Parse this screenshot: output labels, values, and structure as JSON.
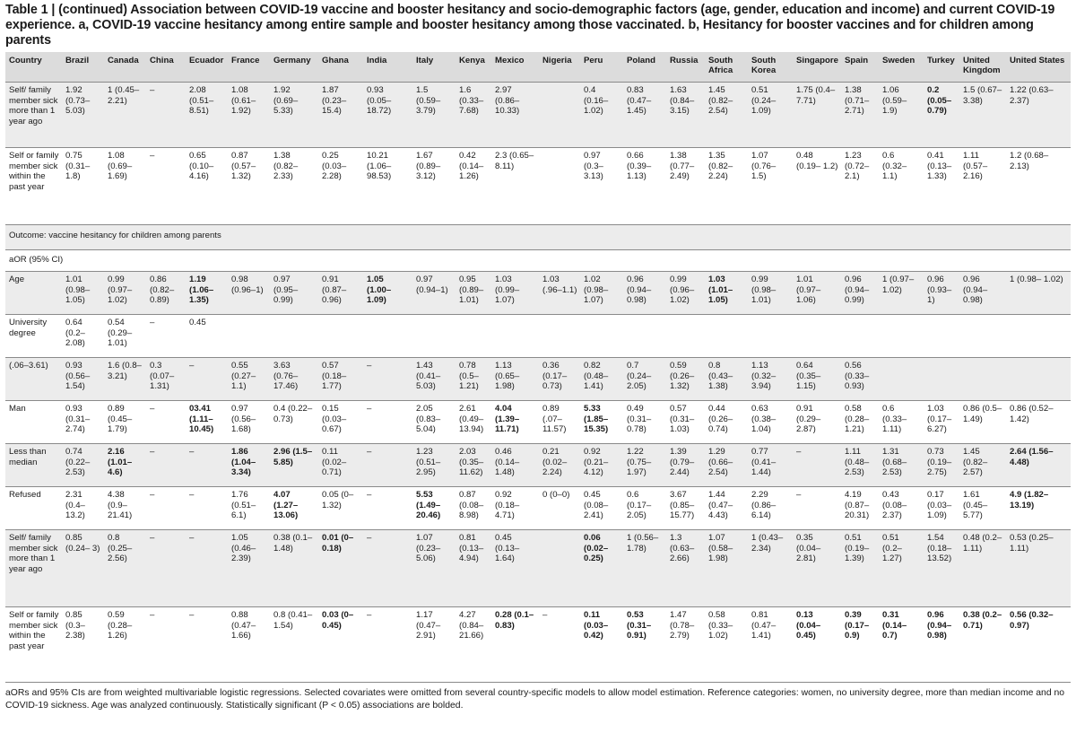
{
  "caption": "Table 1 | (continued) Association between COVID-19 vaccine and booster hesitancy and socio-demographic factors (age, gender, education and income) and current COVID-19 experience. a, COVID-19 vaccine hesitancy among entire sample and booster hesitancy among those vaccinated. b, Hesitancy for booster vaccines and for children among parents",
  "columns": [
    "Country",
    "Brazil",
    "Canada",
    "China",
    "Ecuador",
    "France",
    "Germany",
    "Ghana",
    "India",
    "Italy",
    "Kenya",
    "Mexico",
    "Nigeria",
    "Peru",
    "Poland",
    "Russia",
    "South Africa",
    "South Korea",
    "Singapore",
    "Spain",
    "Sweden",
    "Turkey",
    "United Kingdom",
    "United States"
  ],
  "rows": [
    {
      "h": 73,
      "cls": "alt",
      "cells": [
        {
          "t": "Self/ family member sick more than 1 year ago"
        },
        {
          "t": "1.92 (0.73– 5.03)"
        },
        {
          "t": "1 (0.45– 2.21)"
        },
        {
          "t": "–"
        },
        {
          "t": "2.08 (0.51– 8.51)"
        },
        {
          "t": "1.08 (0.61– 1.92)"
        },
        {
          "t": "1.92 (0.69– 5.33)"
        },
        {
          "t": "1.87 (0.23– 15.4)"
        },
        {
          "t": "0.93 (0.05– 18.72)"
        },
        {
          "t": "1.5 (0.59– 3.79)"
        },
        {
          "t": "1.6 (0.33– 7.68)"
        },
        {
          "t": "2.97 (0.86– 10.33)"
        },
        {
          "t": ""
        },
        {
          "t": "0.4 (0.16– 1.02)"
        },
        {
          "t": "0.83 (0.47– 1.45)"
        },
        {
          "t": "1.63 (0.84– 3.15)"
        },
        {
          "t": "1.45 (0.82– 2.54)"
        },
        {
          "t": "0.51 (0.24– 1.09)"
        },
        {
          "t": "1.75 (0.4– 7.71)"
        },
        {
          "t": "1.38 (0.71– 2.71)"
        },
        {
          "t": "1.06 (0.59– 1.9)"
        },
        {
          "t": "0.2 (0.05– 0.79)",
          "b": true
        },
        {
          "t": "1.5 (0.67– 3.38)"
        },
        {
          "t": "1.22 (0.63– 2.37)"
        }
      ]
    },
    {
      "h": 86,
      "cls": "",
      "cells": [
        {
          "t": "Self or family member sick within the past year"
        },
        {
          "t": "0.75 (0.31– 1.8)"
        },
        {
          "t": "1.08 (0.69– 1.69)"
        },
        {
          "t": "–"
        },
        {
          "t": "0.65 (0.10– 4.16)"
        },
        {
          "t": "0.87 (0.57– 1.32)"
        },
        {
          "t": "1.38 (0.82– 2.33)"
        },
        {
          "t": "0.25 (0.03– 2.28)"
        },
        {
          "t": "10.21 (1.06– 98.53)"
        },
        {
          "t": "1.67 (0.89– 3.12)"
        },
        {
          "t": "0.42 (0.14– 1.26)"
        },
        {
          "t": "2.3 (0.65– 8.11)"
        },
        {
          "t": ""
        },
        {
          "t": "0.97 (0.3– 3.13)"
        },
        {
          "t": "0.66 (0.39– 1.13)"
        },
        {
          "t": "1.38 (0.77– 2.49)"
        },
        {
          "t": "1.35 (0.82– 2.24)"
        },
        {
          "t": "1.07 (0.76– 1.5)"
        },
        {
          "t": "0.48 (0.19– 1.2)"
        },
        {
          "t": "1.23 (0.72– 2.1)"
        },
        {
          "t": "0.6 (0.32– 1.1)"
        },
        {
          "t": "0.41 (0.13– 1.33)"
        },
        {
          "t": "1.11 (0.57– 2.16)"
        },
        {
          "t": "1.2 (0.68– 2.13)"
        }
      ]
    },
    {
      "h": 21,
      "cls": "outcome",
      "span": "Outcome: vaccine hesitancy for children among parents"
    },
    {
      "h": 18,
      "cls": "aor",
      "span": "aOR (95% CI)"
    },
    {
      "h": 48,
      "cls": "alt",
      "cells": [
        {
          "t": "Age"
        },
        {
          "t": "1.01 (0.98– 1.05)"
        },
        {
          "t": "0.99 (0.97– 1.02)"
        },
        {
          "t": "0.86 (0.82– 0.89)"
        },
        {
          "t": "1.19 (1.06– 1.35)",
          "b": true
        },
        {
          "t": "0.98 (0.96–1)"
        },
        {
          "t": "0.97 (0.95– 0.99)"
        },
        {
          "t": "0.91 (0.87– 0.96)"
        },
        {
          "t": "1.05 (1.00– 1.09)",
          "b": true
        },
        {
          "t": "0.97 (0.94–1)"
        },
        {
          "t": "0.95 (0.89– 1.01)"
        },
        {
          "t": "1.03 (0.99– 1.07)"
        },
        {
          "t": "1.03 (.96–1.1)"
        },
        {
          "t": "1.02 (0.98– 1.07)"
        },
        {
          "t": "0.96 (0.94– 0.98)"
        },
        {
          "t": "0.99 (0.96– 1.02)"
        },
        {
          "t": "1.03 (1.01– 1.05)",
          "b": true
        },
        {
          "t": "0.99 (0.98– 1.01)"
        },
        {
          "t": "1.01 (0.97– 1.06)"
        },
        {
          "t": "0.96 (0.94– 0.99)"
        },
        {
          "t": "1 (0.97– 1.02)"
        },
        {
          "t": "0.96 (0.93–1)"
        },
        {
          "t": "0.96 (0.94– 0.98)"
        },
        {
          "t": "1 (0.98– 1.02)"
        }
      ]
    },
    {
      "h": 48,
      "cls": "",
      "cells": [
        {
          "t": "University degree"
        },
        {
          "t": "0.64 (0.2– 2.08)"
        },
        {
          "t": "0.54 (0.29– 1.01)"
        },
        {
          "t": "–"
        },
        {
          "t": "0.45"
        },
        {
          "t": ""
        },
        {
          "t": ""
        },
        {
          "t": ""
        },
        {
          "t": ""
        },
        {
          "t": ""
        },
        {
          "t": ""
        },
        {
          "t": ""
        },
        {
          "t": ""
        },
        {
          "t": ""
        },
        {
          "t": ""
        },
        {
          "t": ""
        },
        {
          "t": ""
        },
        {
          "t": ""
        },
        {
          "t": ""
        },
        {
          "t": ""
        },
        {
          "t": ""
        },
        {
          "t": ""
        },
        {
          "t": ""
        },
        {
          "t": ""
        }
      ]
    },
    {
      "h": 48,
      "cls": "alt",
      "cells": [
        {
          "t": "(.06–3.61)"
        },
        {
          "t": "0.93 (0.56– 1.54)"
        },
        {
          "t": "1.6 (0.8– 3.21)"
        },
        {
          "t": "0.3 (0.07– 1.31)"
        },
        {
          "t": "–"
        },
        {
          "t": "0.55 (0.27– 1.1)"
        },
        {
          "t": "3.63 (0.76– 17.46)"
        },
        {
          "t": "0.57 (0.18– 1.77)"
        },
        {
          "t": "–"
        },
        {
          "t": "1.43 (0.41– 5.03)"
        },
        {
          "t": "0.78 (0.5– 1.21)"
        },
        {
          "t": "1.13 (0.65– 1.98)"
        },
        {
          "t": "0.36 (0.17– 0.73)"
        },
        {
          "t": "0.82 (0.48– 1.41)"
        },
        {
          "t": "0.7 (0.24– 2.05)"
        },
        {
          "t": "0.59 (0.26– 1.32)"
        },
        {
          "t": "0.8 (0.43– 1.38)"
        },
        {
          "t": "1.13 (0.32– 3.94)"
        },
        {
          "t": "0.64 (0.35– 1.15)"
        },
        {
          "t": "0.56 (0.33– 0.93)"
        },
        {
          "t": ""
        },
        {
          "t": ""
        },
        {
          "t": ""
        },
        {
          "t": ""
        }
      ]
    },
    {
      "h": 48,
      "cls": "",
      "cells": [
        {
          "t": "Man"
        },
        {
          "t": "0.93 (0.31– 2.74)"
        },
        {
          "t": "0.89 (0.45– 1.79)"
        },
        {
          "t": "–"
        },
        {
          "t": "03.41 (1.11– 10.45)",
          "b": true
        },
        {
          "t": "0.97 (0.56– 1.68)"
        },
        {
          "t": "0.4 (0.22– 0.73)"
        },
        {
          "t": "0.15 (0.03– 0.67)"
        },
        {
          "t": "–"
        },
        {
          "t": "2.05 (0.83– 5.04)"
        },
        {
          "t": "2.61 (0.49– 13.94)"
        },
        {
          "t": "4.04 (1.39– 11.71)",
          "b": true
        },
        {
          "t": "0.89 (.07– 11.57)"
        },
        {
          "t": "5.33 (1.85– 15.35)",
          "b": true
        },
        {
          "t": "0.49 (0.31– 0.78)"
        },
        {
          "t": "0.57 (0.31– 1.03)"
        },
        {
          "t": "0.44 (0.26– 0.74)"
        },
        {
          "t": "0.63 (0.38– 1.04)"
        },
        {
          "t": "0.91 (0.29– 2.87)"
        },
        {
          "t": "0.58 (0.28– 1.21)"
        },
        {
          "t": "0.6 (0.33– 1.11)"
        },
        {
          "t": "1.03 (0.17– 6.27)"
        },
        {
          "t": "0.86 (0.5– 1.49)"
        },
        {
          "t": "0.86 (0.52– 1.42)"
        }
      ]
    },
    {
      "h": 48,
      "cls": "alt",
      "cells": [
        {
          "t": "Less than median"
        },
        {
          "t": "0.74 (0.22– 2.53)"
        },
        {
          "t": "2.16 (1.01– 4.6)",
          "b": true
        },
        {
          "t": "–"
        },
        {
          "t": "–"
        },
        {
          "t": "1.86 (1.04– 3.34)",
          "b": true
        },
        {
          "t": "2.96 (1.5– 5.85)",
          "b": true
        },
        {
          "t": "0.11 (0.02– 0.71)"
        },
        {
          "t": "–"
        },
        {
          "t": "1.23 (0.51– 2.95)"
        },
        {
          "t": "2.03 (0.35– 11.62)"
        },
        {
          "t": "0.46 (0.14– 1.48)"
        },
        {
          "t": "0.21 (0.02– 2.24)"
        },
        {
          "t": "0.92 (0.21– 4.12)"
        },
        {
          "t": "1.22 (0.75– 1.97)"
        },
        {
          "t": "1.39 (0.79– 2.44)"
        },
        {
          "t": "1.29 (0.66– 2.54)"
        },
        {
          "t": "0.77 (0.41– 1.44)"
        },
        {
          "t": "–"
        },
        {
          "t": "1.11 (0.48– 2.53)"
        },
        {
          "t": "1.31 (0.68– 2.53)"
        },
        {
          "t": "0.73 (0.19– 2.75)"
        },
        {
          "t": "1.45 (0.82– 2.57)"
        },
        {
          "t": "2.64 (1.56– 4.48)",
          "b": true
        }
      ]
    },
    {
      "h": 48,
      "cls": "",
      "cells": [
        {
          "t": "Refused"
        },
        {
          "t": "2.31 (0.4– 13.2)"
        },
        {
          "t": "4.38 (0.9– 21.41)"
        },
        {
          "t": "–"
        },
        {
          "t": "–"
        },
        {
          "t": "1.76 (0.51– 6.1)"
        },
        {
          "t": "4.07 (1.27– 13.06)",
          "b": true
        },
        {
          "t": "0.05 (0– 1.32)"
        },
        {
          "t": "–"
        },
        {
          "t": "5.53 (1.49– 20.46)",
          "b": true
        },
        {
          "t": "0.87 (0.08– 8.98)"
        },
        {
          "t": "0.92 (0.18– 4.71)"
        },
        {
          "t": "0 (0–0)"
        },
        {
          "t": "0.45 (0.08– 2.41)"
        },
        {
          "t": "0.6 (0.17– 2.05)"
        },
        {
          "t": "3.67 (0.85– 15.77)"
        },
        {
          "t": "1.44 (0.47– 4.43)"
        },
        {
          "t": "2.29 (0.86– 6.14)"
        },
        {
          "t": "–"
        },
        {
          "t": "4.19 (0.87– 20.31)"
        },
        {
          "t": "0.43 (0.08– 2.37)"
        },
        {
          "t": "0.17 (0.03– 1.09)"
        },
        {
          "t": "1.61 (0.45– 5.77)"
        },
        {
          "t": "4.9 (1.82– 13.19)",
          "b": true
        }
      ]
    },
    {
      "h": 86,
      "cls": "alt",
      "cells": [
        {
          "t": "Self/ family member sick more than 1 year ago"
        },
        {
          "t": "0.85 (0.24– 3)"
        },
        {
          "t": "0.8 (0.25– 2.56)"
        },
        {
          "t": "–"
        },
        {
          "t": "–"
        },
        {
          "t": "1.05 (0.46– 2.39)"
        },
        {
          "t": "0.38 (0.1–1.48)"
        },
        {
          "t": "0.01 (0– 0.18)",
          "b": true
        },
        {
          "t": "–"
        },
        {
          "t": "1.07 (0.23– 5.06)"
        },
        {
          "t": "0.81 (0.13– 4.94)"
        },
        {
          "t": "0.45 (0.13– 1.64)"
        },
        {
          "t": ""
        },
        {
          "t": "0.06 (0.02– 0.25)",
          "b": true
        },
        {
          "t": "1 (0.56– 1.78)"
        },
        {
          "t": "1.3 (0.63– 2.66)"
        },
        {
          "t": "1.07 (0.58– 1.98)"
        },
        {
          "t": "1 (0.43– 2.34)"
        },
        {
          "t": "0.35 (0.04– 2.81)"
        },
        {
          "t": "0.51 (0.19– 1.39)"
        },
        {
          "t": "0.51 (0.2– 1.27)"
        },
        {
          "t": "1.54 (0.18– 13.52)"
        },
        {
          "t": "0.48 (0.2–1.11)"
        },
        {
          "t": "0.53 (0.25– 1.11)"
        }
      ]
    },
    {
      "h": 84,
      "cls": "",
      "cells": [
        {
          "t": "Self or family member sick within the past year"
        },
        {
          "t": "0.85 (0.3– 2.38)"
        },
        {
          "t": "0.59 (0.28– 1.26)"
        },
        {
          "t": "–"
        },
        {
          "t": "–"
        },
        {
          "t": "0.88 (0.47– 1.66)"
        },
        {
          "t": "0.8 (0.41– 1.54)"
        },
        {
          "t": "0.03 (0– 0.45)",
          "b": true
        },
        {
          "t": "–"
        },
        {
          "t": "1.17 (0.47– 2.91)"
        },
        {
          "t": "4.27 (0.84– 21.66)"
        },
        {
          "t": "0.28 (0.1– 0.83)",
          "b": true
        },
        {
          "t": "–"
        },
        {
          "t": "0.11 (0.03– 0.42)",
          "b": true
        },
        {
          "t": "0.53 (0.31– 0.91)",
          "b": true
        },
        {
          "t": "1.47 (0.78– 2.79)"
        },
        {
          "t": "0.58 (0.33– 1.02)"
        },
        {
          "t": "0.81 (0.47– 1.41)"
        },
        {
          "t": "0.13 (0.04– 0.45)",
          "b": true
        },
        {
          "t": "0.39 (0.17– 0.9)",
          "b": true
        },
        {
          "t": "0.31 (0.14– 0.7)",
          "b": true
        },
        {
          "t": "0.96 (0.94– 0.98)",
          "b": true
        },
        {
          "t": "0.38 (0.2– 0.71)",
          "b": true
        },
        {
          "t": "0.56 (0.32– 0.97)",
          "b": true
        }
      ]
    }
  ],
  "footnote": "aORs and 95% CIs are from weighted multivariable logistic regressions. Selected covariates were omitted from several country-specific models to allow model estimation. Reference categories: women, no university degree, more than median income and no COVID-19 sickness. Age was analyzed continuously. Statistically significant (P < 0.05) associations are bolded."
}
